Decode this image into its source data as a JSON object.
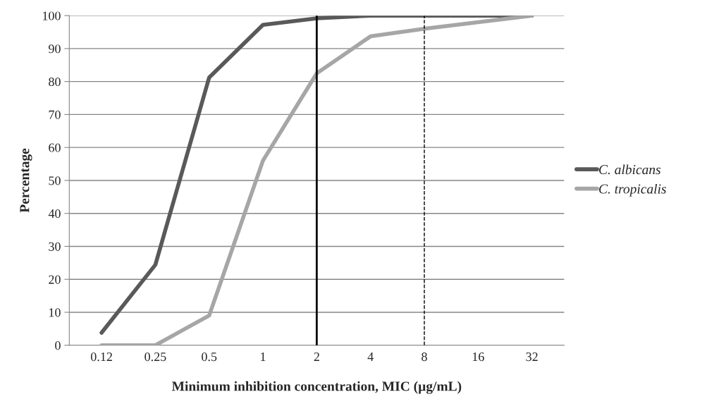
{
  "chart_data": {
    "type": "line",
    "xlabel": "Minimum inhibition concentration, MIC (µg/mL)",
    "ylabel": "Percentage",
    "categories": [
      "0.12",
      "0.25",
      "0.5",
      "1",
      "2",
      "4",
      "8",
      "16",
      "32"
    ],
    "series": [
      {
        "name": "C. albicans",
        "color": "#595959",
        "values": [
          3.8,
          24.4,
          81.2,
          97.2,
          99.2,
          100,
          100,
          100,
          100
        ]
      },
      {
        "name": "C. tropicalis",
        "color": "#a6a6a6",
        "values": [
          0,
          0,
          9,
          56,
          82.5,
          93.7,
          96,
          98,
          100
        ]
      }
    ],
    "ref_lines": [
      {
        "axis": "x",
        "value": "2",
        "color": "#000000",
        "line_style": "solid"
      },
      {
        "axis": "x",
        "value": "8",
        "color": "#000000",
        "line_style": "dashed"
      }
    ],
    "ylim": [
      0,
      100
    ],
    "yticks": [
      0,
      10,
      20,
      30,
      40,
      50,
      60,
      70,
      80,
      90,
      100
    ],
    "grid": "y",
    "legend": "right",
    "marker": "none",
    "line_style": "solid"
  }
}
